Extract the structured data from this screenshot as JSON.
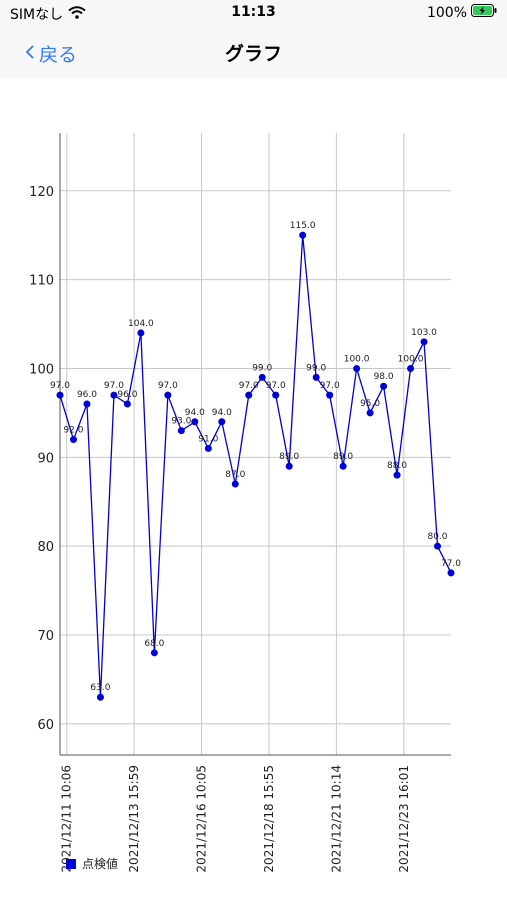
{
  "status_bar": {
    "carrier": "SIMなし",
    "time": "11:13",
    "battery_percent": "100%",
    "icons": [
      "wifi-icon",
      "battery-charging-icon"
    ]
  },
  "nav": {
    "back_label": "戻る",
    "title": "グラフ"
  },
  "colors": {
    "series": "#0000d8",
    "accent": "#3478f6",
    "grid": "#c8c8c8"
  },
  "chart_data": {
    "type": "line",
    "title": "",
    "xlabel": "",
    "ylabel": "",
    "ylim": [
      56.5,
      126.5
    ],
    "yticks": [
      60,
      70,
      80,
      90,
      100,
      110,
      120
    ],
    "grid": true,
    "legend_position": "bottom-left",
    "x_tick_labels": [
      "2021/12/11 10:06",
      "2021/12/13 15:59",
      "2021/12/16 10:05",
      "2021/12/18 15:55",
      "2021/12/21 10:14",
      "2021/12/23 16:01"
    ],
    "series": [
      {
        "name": "点検値",
        "values": [
          97.0,
          92.0,
          96.0,
          63.0,
          97.0,
          96.0,
          104.0,
          68.0,
          97.0,
          93.0,
          94.0,
          91.0,
          94.0,
          87.0,
          97.0,
          99.0,
          97.0,
          89.0,
          115.0,
          99.0,
          97.0,
          89.0,
          100.0,
          95.0,
          98.0,
          88.0,
          100.0,
          103.0,
          80.0,
          77.0
        ],
        "data_labels": [
          "97.0",
          "92.0",
          "96.0",
          "63.0",
          "97.0",
          "96.0",
          "104.0",
          "68.0",
          "97.0",
          "93.0",
          "94.0",
          "91.0",
          "94.0",
          "87.0",
          "97.0",
          "99.0",
          "97.0",
          "89.0",
          "115.0",
          "99.0",
          "97.0",
          "89.0",
          "100.0",
          "95.0",
          "98.0",
          "88.0",
          "100.0",
          "103.0",
          "80.0",
          "77.0"
        ]
      }
    ]
  }
}
